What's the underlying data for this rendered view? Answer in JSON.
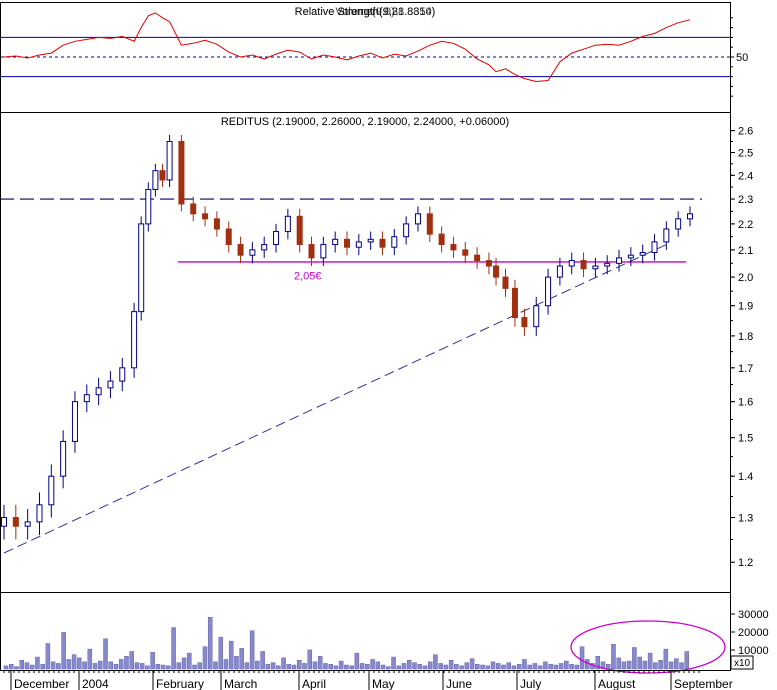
{
  "chart_data": [
    {
      "type": "line",
      "panel": "indicator",
      "title_overlap": [
        "Relative Strength(9,28.8850)",
        "Relative Strength(9,31.8314)",
        "Volume(0.0)"
      ],
      "axis_labels": [
        "50"
      ],
      "reference_lines": [
        70,
        50,
        30
      ],
      "ylim": [
        0,
        100
      ],
      "x": [
        0,
        5,
        10,
        15,
        20,
        25,
        30,
        35,
        40,
        45,
        50,
        55,
        58,
        61,
        64,
        67,
        70,
        75,
        80,
        85,
        90,
        95,
        100,
        105,
        110,
        115,
        120,
        125,
        130,
        135,
        140,
        145,
        150,
        155,
        160,
        165,
        170,
        175,
        180,
        185,
        190,
        195,
        200,
        205,
        208,
        212,
        216,
        220,
        225,
        230,
        235,
        240,
        245,
        250,
        255,
        260,
        265,
        270,
        275,
        280,
        285,
        290
      ],
      "values": [
        50,
        51,
        49,
        52,
        54,
        62,
        66,
        68,
        70,
        69,
        71,
        66,
        80,
        92,
        95,
        90,
        86,
        62,
        64,
        67,
        63,
        55,
        50,
        52,
        48,
        53,
        57,
        55,
        48,
        52,
        50,
        47,
        51,
        54,
        49,
        53,
        51,
        56,
        62,
        66,
        64,
        58,
        48,
        42,
        35,
        38,
        32,
        28,
        25,
        26,
        45,
        54,
        58,
        62,
        63,
        62,
        66,
        71,
        74,
        80,
        85,
        88
      ]
    },
    {
      "type": "candlestick",
      "panel": "price",
      "title": "REDITUS (2.19000, 2.26000, 2.19000, 2.24000, +0.06000)",
      "ylim": [
        1.15,
        2.65
      ],
      "yticks": [
        "2.6",
        "2.5",
        "2.4",
        "2.3",
        "2.2",
        "2.1",
        "2.0",
        "1.9",
        "1.8",
        "1.7",
        "1.6",
        "1.5",
        "1.4",
        "1.3",
        "1.2"
      ],
      "x": [
        0,
        5,
        10,
        15,
        20,
        25,
        30,
        35,
        40,
        45,
        50,
        55,
        58,
        61,
        64,
        67,
        70,
        75,
        80,
        85,
        90,
        95,
        100,
        105,
        110,
        115,
        120,
        125,
        130,
        135,
        140,
        145,
        150,
        155,
        160,
        165,
        170,
        175,
        180,
        185,
        190,
        195,
        200,
        205,
        208,
        212,
        216,
        220,
        225,
        230,
        235,
        240,
        245,
        250,
        255,
        260,
        265,
        270,
        275,
        280,
        285,
        290
      ],
      "close": [
        1.3,
        1.28,
        1.29,
        1.33,
        1.4,
        1.49,
        1.6,
        1.62,
        1.64,
        1.66,
        1.7,
        1.88,
        2.2,
        2.34,
        2.42,
        2.38,
        2.55,
        2.28,
        2.24,
        2.22,
        2.18,
        2.12,
        2.08,
        2.1,
        2.12,
        2.17,
        2.23,
        2.12,
        2.07,
        2.12,
        2.14,
        2.11,
        2.13,
        2.14,
        2.11,
        2.15,
        2.2,
        2.24,
        2.16,
        2.12,
        2.1,
        2.08,
        2.06,
        2.04,
        2.0,
        1.96,
        1.86,
        1.83,
        1.9,
        2.0,
        2.04,
        2.06,
        2.03,
        2.04,
        2.05,
        2.07,
        2.08,
        2.09,
        2.13,
        2.18,
        2.22,
        2.24
      ],
      "annotations": [
        {
          "text": "2,05€",
          "price": 2.05,
          "color": "#cc00cc"
        }
      ],
      "horizontal_lines": [
        {
          "price": 2.3,
          "style": "dashed",
          "color": "#000066"
        },
        {
          "price": 2.055,
          "style": "solid",
          "color": "#cc00cc"
        }
      ],
      "trendline": {
        "from": {
          "x": 0,
          "price": 1.22
        },
        "to": {
          "x": 280,
          "price": 2.12
        },
        "style": "dashed",
        "color": "#333399"
      }
    },
    {
      "type": "bar",
      "panel": "volume",
      "yticks": [
        "30000",
        "20000",
        "10000"
      ],
      "unit": "x10",
      "values": [
        400,
        600,
        300,
        1100,
        800,
        500,
        1500,
        600,
        3200,
        900,
        700,
        4600,
        1200,
        1800,
        1400,
        900,
        2500,
        700,
        1000,
        3800,
        900,
        600,
        1200,
        1600,
        2200,
        800,
        700,
        400,
        2100,
        600,
        500,
        400,
        5200,
        800,
        1400,
        2000,
        500,
        800,
        2800,
        6500,
        900,
        4000,
        1200,
        3500,
        1600,
        2600,
        800,
        4800,
        1000,
        2200,
        600,
        800,
        400,
        1400,
        600,
        500,
        1100,
        700,
        2400,
        900,
        1600,
        700,
        600,
        400,
        1000,
        500,
        400,
        2000,
        700,
        600,
        1200,
        900,
        500,
        300,
        1500,
        400,
        700,
        1100,
        800,
        600,
        400,
        900,
        1800,
        700,
        500,
        1100,
        600,
        400,
        800,
        1300,
        600,
        500,
        400,
        900,
        700,
        500,
        800,
        400,
        600,
        1200,
        500,
        700,
        400,
        900,
        600,
        500,
        700,
        1000,
        600,
        500,
        2800,
        1200,
        700,
        1600,
        900,
        600,
        3100,
        1400,
        900,
        1000,
        2700,
        1500,
        1000,
        2000,
        800,
        1100,
        2500,
        900,
        1300,
        800,
        2200
      ],
      "annotation": {
        "shape": "ellipse",
        "color": "#cc00cc"
      }
    }
  ],
  "x_axis": {
    "labels": [
      "December",
      "2004",
      "February",
      "March",
      "April",
      "May",
      "June",
      "July",
      "August",
      "September"
    ]
  }
}
